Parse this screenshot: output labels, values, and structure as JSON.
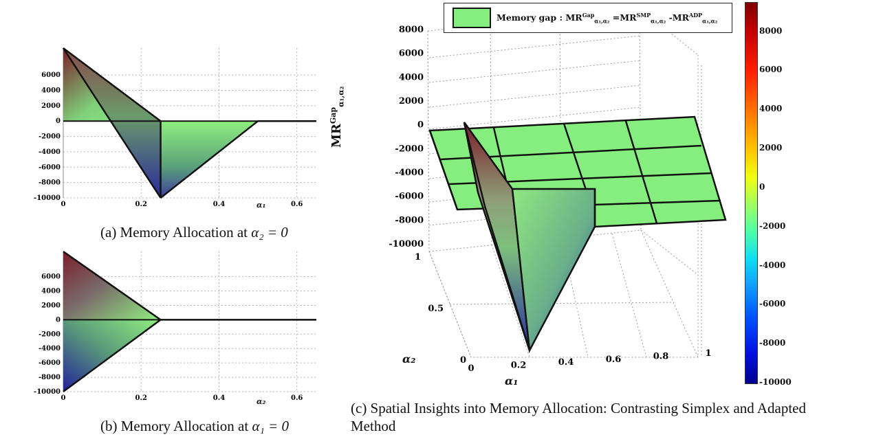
{
  "panels": [
    {
      "id": "a",
      "caption_text": "(a) Memory Allocation at ",
      "caption_math": "α₂ = 0",
      "x_label": "α₁",
      "chart_data": {
        "type": "area",
        "x_ticks": [
          0,
          0.2,
          0.4,
          0.6
        ],
        "x_tick_labels": [
          "0",
          "0.2",
          "0.4",
          "0.6"
        ],
        "y_ticks": [
          6000,
          4000,
          2000,
          0,
          -2000,
          -4000,
          -6000,
          -8000,
          -10000
        ],
        "y_tick_labels": [
          "6000",
          "4000",
          "2000",
          "0",
          "-2000",
          "-4000",
          "-6000",
          "-8000",
          "-10000"
        ],
        "xlim": [
          0,
          0.65
        ],
        "ylim": [
          -10000,
          9500
        ],
        "grid": true,
        "series": [
          {
            "x": [
              0,
              0.25
            ],
            "y": [
              9500,
              0
            ]
          },
          {
            "x": [
              0,
              0.25
            ],
            "y": [
              9500,
              -10000
            ]
          },
          {
            "x": [
              0.25,
              0.5
            ],
            "y": [
              -10000,
              0
            ]
          },
          {
            "x": [
              0.5,
              0.65
            ],
            "y": [
              0,
              0
            ]
          }
        ]
      }
    },
    {
      "id": "b",
      "caption_text": "(b) Memory Allocation at ",
      "caption_math": "α₁ = 0",
      "x_label": "α₂",
      "chart_data": {
        "type": "area",
        "x_ticks": [
          0,
          0.2,
          0.4,
          0.6
        ],
        "x_tick_labels": [
          "0",
          "0.2",
          "0.4",
          "0.6"
        ],
        "y_ticks": [
          6000,
          4000,
          2000,
          0,
          -2000,
          -4000,
          -6000,
          -8000,
          -10000
        ],
        "y_tick_labels": [
          "6000",
          "4000",
          "2000",
          "0",
          "-2000",
          "-4000",
          "-6000",
          "-8000",
          "-10000"
        ],
        "xlim": [
          0,
          0.65
        ],
        "ylim": [
          -10000,
          9500
        ],
        "grid": true,
        "series": [
          {
            "x": [
              0,
              0.25
            ],
            "y": [
              9500,
              0
            ]
          },
          {
            "x": [
              0,
              0.25
            ],
            "y": [
              -10000,
              0
            ]
          },
          {
            "x": [
              0.25,
              0.65
            ],
            "y": [
              0,
              0
            ]
          }
        ]
      }
    },
    {
      "id": "c",
      "caption": "(c) Spatial Insights into Memory Allocation: Contrasting Simplex and Adapted Method",
      "legend_text": "Memory gap : MR",
      "legend_gap_sup": "Gap",
      "legend_sub": "α₁,α₂",
      "legend_mid1": " =MR",
      "legend_smp_sup": "SMP",
      "legend_mid2": " -MR",
      "legend_adp_sup": "ADP",
      "z_label_main": "MR",
      "z_label_sup": "Gap",
      "z_label_sub": "α₁,α₂",
      "x_label": "α₁",
      "y_label": "α₂",
      "chart_data": {
        "type": "surface",
        "z_ticks": [
          8000,
          6000,
          4000,
          2000,
          0,
          -2000,
          -4000,
          -6000,
          -8000,
          -10000
        ],
        "z_tick_labels": [
          "8000",
          "6000",
          "4000",
          "2000",
          "0",
          "-2000",
          "-4000",
          "-6000",
          "-8000",
          "-10000"
        ],
        "x_ticks": [
          0,
          0.2,
          0.4,
          0.6,
          0.8,
          1
        ],
        "x_tick_labels": [
          "0",
          "0.2",
          "0.4",
          "0.6",
          "0.8",
          "1"
        ],
        "y_ticks": [
          0,
          0.5,
          1
        ],
        "y_tick_labels": [
          "0",
          "0.5",
          "1"
        ],
        "zlim": [
          -10000,
          9500
        ],
        "colorbar_ticks": [
          "8000",
          "6000",
          "4000",
          "2000",
          "0",
          "-2000",
          "-4000",
          "-6000",
          "-8000",
          "-10000"
        ],
        "colorbar_range": [
          -10000,
          9500
        ]
      }
    }
  ]
}
